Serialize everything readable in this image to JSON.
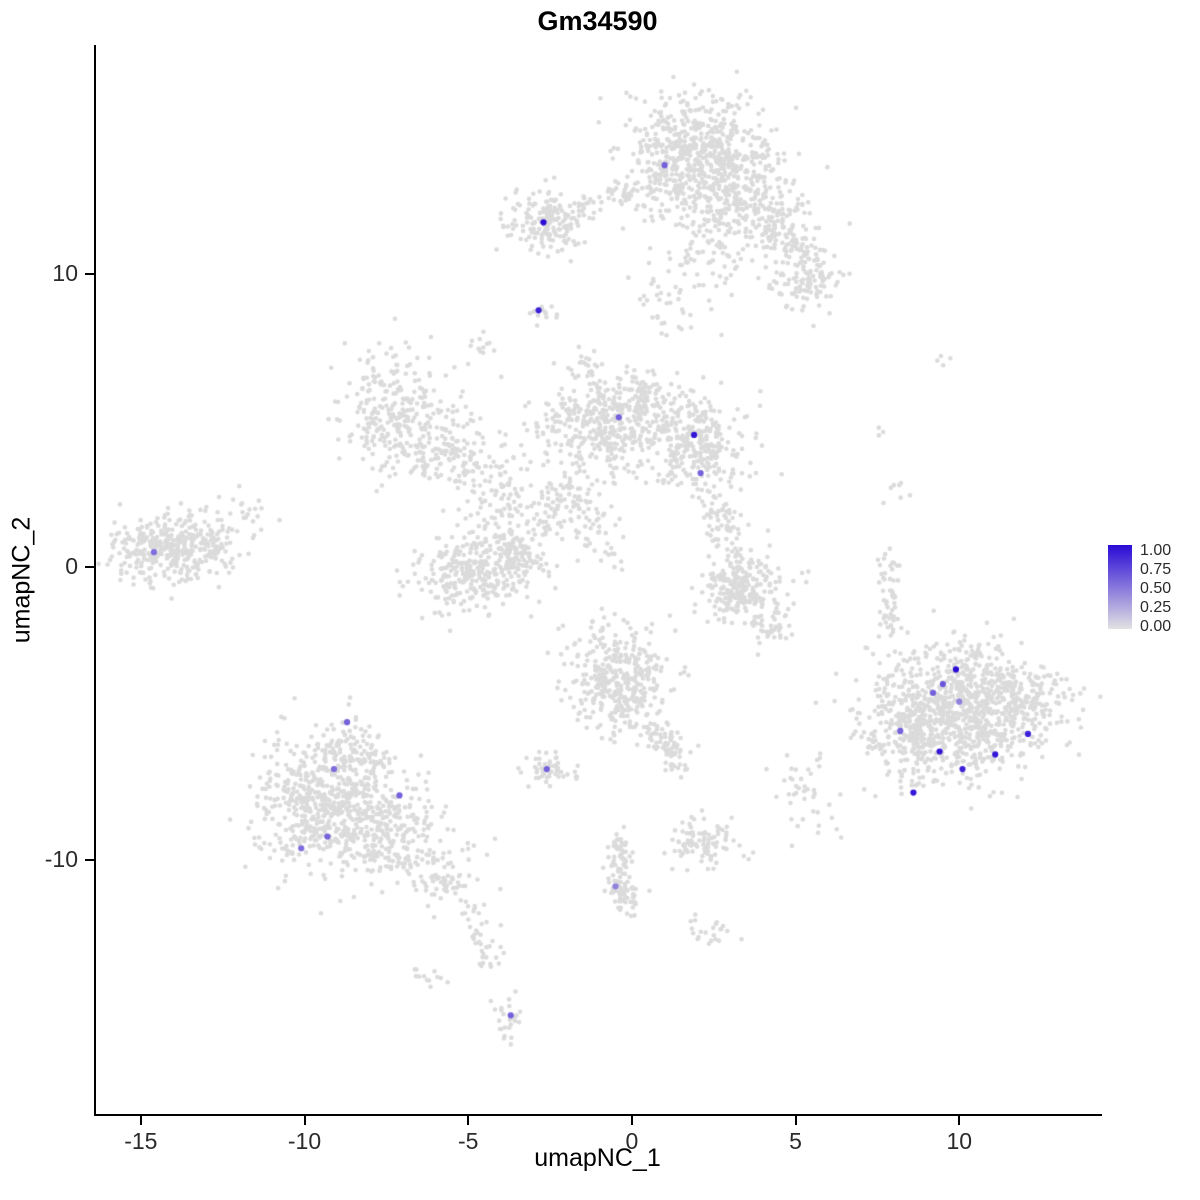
{
  "colors": {
    "background_points": "#DBDBDB",
    "axis": "#000000",
    "background": "#FFFFFF"
  },
  "chart_data": {
    "type": "scatter",
    "title": "Gm34590",
    "xlabel": "umapNC_1",
    "ylabel": "umapNC_2",
    "xlim": [
      -16.4,
      14.3
    ],
    "ylim": [
      -18.7,
      17.8
    ],
    "x_ticks": [
      -15,
      -10,
      -5,
      0,
      5,
      10
    ],
    "y_ticks": [
      10,
      0,
      -10
    ],
    "grid": false,
    "legend": {
      "position": "right",
      "labels": [
        "1.00",
        "0.75",
        "0.50",
        "0.25",
        "0.00"
      ],
      "color_high": "#2A0BD6",
      "color_low": "#E2E2E2"
    },
    "background_clusters": [
      {
        "shape": "blob",
        "cx": 1.9,
        "cy": 14.0,
        "sx": 1.15,
        "sy": 1.0,
        "n": 650
      },
      {
        "shape": "blob",
        "cx": 3.6,
        "cy": 12.4,
        "sx": 0.9,
        "sy": 0.8,
        "n": 180
      },
      {
        "shape": "strand",
        "x1": 4.2,
        "y1": 11.9,
        "x2": 5.6,
        "y2": 10.3,
        "w": 0.45,
        "n": 110
      },
      {
        "shape": "blob",
        "cx": 5.3,
        "cy": 9.7,
        "sx": 0.6,
        "sy": 0.5,
        "n": 90
      },
      {
        "shape": "blob",
        "cx": 2.2,
        "cy": 11.0,
        "sx": 1.0,
        "sy": 1.0,
        "n": 90
      },
      {
        "shape": "blob",
        "cx": 1.2,
        "cy": 8.9,
        "sx": 0.7,
        "sy": 0.6,
        "n": 35
      },
      {
        "shape": "blob",
        "cx": -2.6,
        "cy": 11.8,
        "sx": 0.6,
        "sy": 0.5,
        "n": 170
      },
      {
        "shape": "strand",
        "x1": -1.9,
        "y1": 12.1,
        "x2": 0.5,
        "y2": 12.8,
        "w": 0.25,
        "n": 45
      },
      {
        "shape": "blob",
        "cx": -2.8,
        "cy": 8.7,
        "sx": 0.18,
        "sy": 0.18,
        "n": 14
      },
      {
        "shape": "blob",
        "cx": -4.6,
        "cy": 7.5,
        "sx": 0.25,
        "sy": 0.2,
        "n": 12
      },
      {
        "shape": "blob",
        "cx": -7.2,
        "cy": 5.4,
        "sx": 0.85,
        "sy": 0.95,
        "n": 260
      },
      {
        "shape": "blob",
        "cx": -6.2,
        "cy": 3.9,
        "sx": 0.55,
        "sy": 0.5,
        "n": 70
      },
      {
        "shape": "strand",
        "x1": -5.6,
        "y1": 4.6,
        "x2": -4.2,
        "y2": 2.9,
        "w": 0.5,
        "n": 80
      },
      {
        "shape": "blob",
        "cx": -0.9,
        "cy": 4.9,
        "sx": 0.95,
        "sy": 0.8,
        "n": 380
      },
      {
        "shape": "blob",
        "cx": 1.9,
        "cy": 4.2,
        "sx": 0.85,
        "sy": 0.75,
        "n": 320
      },
      {
        "shape": "blob",
        "cx": 0.5,
        "cy": 5.7,
        "sx": 0.5,
        "sy": 0.4,
        "n": 70
      },
      {
        "shape": "blob",
        "cx": -3.9,
        "cy": 2.1,
        "sx": 1.0,
        "sy": 0.8,
        "n": 100
      },
      {
        "shape": "strand",
        "x1": -3.0,
        "y1": 1.4,
        "x2": -1.2,
        "y2": 3.0,
        "w": 0.55,
        "n": 90
      },
      {
        "shape": "blob",
        "cx": -4.9,
        "cy": -0.2,
        "sx": 0.9,
        "sy": 0.6,
        "n": 300
      },
      {
        "shape": "blob",
        "cx": -3.5,
        "cy": 0.4,
        "sx": 0.45,
        "sy": 0.5,
        "n": 80
      },
      {
        "shape": "strand",
        "x1": -1.6,
        "y1": 1.8,
        "x2": -0.6,
        "y2": 0.4,
        "w": 0.4,
        "n": 45
      },
      {
        "shape": "blob",
        "cx": -1.6,
        "cy": 6.9,
        "sx": 0.3,
        "sy": 0.35,
        "n": 18
      },
      {
        "shape": "strand",
        "x1": 2.3,
        "y1": 2.6,
        "x2": 3.1,
        "y2": 0.6,
        "w": 0.3,
        "n": 70
      },
      {
        "shape": "blob",
        "cx": 3.3,
        "cy": -0.6,
        "sx": 0.6,
        "sy": 0.55,
        "n": 240
      },
      {
        "shape": "strand",
        "x1": 3.7,
        "y1": -1.5,
        "x2": 4.5,
        "y2": -2.5,
        "w": 0.3,
        "n": 45
      },
      {
        "shape": "blob",
        "cx": -14.2,
        "cy": 0.6,
        "sx": 0.9,
        "sy": 0.55,
        "n": 320
      },
      {
        "shape": "blob",
        "cx": -12.8,
        "cy": 1.1,
        "sx": 0.7,
        "sy": 0.5,
        "n": 70
      },
      {
        "shape": "blob",
        "cx": -12.0,
        "cy": 1.8,
        "sx": 0.5,
        "sy": 0.5,
        "n": 14
      },
      {
        "shape": "blob",
        "cx": -0.3,
        "cy": -3.9,
        "sx": 0.8,
        "sy": 0.9,
        "n": 380
      },
      {
        "shape": "strand",
        "x1": 0.5,
        "y1": -5.1,
        "x2": 1.1,
        "y2": -6.2,
        "w": 0.3,
        "n": 45
      },
      {
        "shape": "blob",
        "cx": 1.2,
        "cy": -6.5,
        "sx": 0.3,
        "sy": 0.3,
        "n": 30
      },
      {
        "shape": "blob",
        "cx": -2.5,
        "cy": -6.9,
        "sx": 0.4,
        "sy": 0.28,
        "n": 55
      },
      {
        "shape": "strand",
        "x1": -0.4,
        "y1": -9.2,
        "x2": -0.3,
        "y2": -11.2,
        "w": 0.2,
        "n": 70
      },
      {
        "shape": "blob",
        "cx": -0.2,
        "cy": -11.2,
        "sx": 0.3,
        "sy": 0.4,
        "n": 45
      },
      {
        "shape": "blob",
        "cx": 2.1,
        "cy": -9.4,
        "sx": 0.55,
        "sy": 0.45,
        "n": 100
      },
      {
        "shape": "blob",
        "cx": 2.4,
        "cy": -12.4,
        "sx": 0.4,
        "sy": 0.3,
        "n": 22
      },
      {
        "shape": "blob",
        "cx": 5.2,
        "cy": -7.4,
        "sx": 0.5,
        "sy": 0.7,
        "n": 35
      },
      {
        "shape": "blob",
        "cx": -8.9,
        "cy": -8.4,
        "sx": 1.15,
        "sy": 1.0,
        "n": 600
      },
      {
        "shape": "blob",
        "cx": -8.7,
        "cy": -6.3,
        "sx": 0.75,
        "sy": 0.6,
        "n": 130
      },
      {
        "shape": "blob",
        "cx": -7.0,
        "cy": -9.6,
        "sx": 0.9,
        "sy": 0.7,
        "n": 130
      },
      {
        "shape": "strand",
        "x1": -6.1,
        "y1": -10.3,
        "x2": -4.8,
        "y2": -11.9,
        "w": 0.4,
        "n": 60
      },
      {
        "shape": "strand",
        "x1": -4.6,
        "y1": -12.1,
        "x2": -4.3,
        "y2": -13.6,
        "w": 0.25,
        "n": 28
      },
      {
        "shape": "blob",
        "cx": -3.8,
        "cy": -15.3,
        "sx": 0.25,
        "sy": 0.4,
        "n": 26
      },
      {
        "shape": "blob",
        "cx": -10.7,
        "cy": -7.2,
        "sx": 0.5,
        "sy": 0.8,
        "n": 45
      },
      {
        "shape": "blob",
        "cx": -6.3,
        "cy": -13.9,
        "sx": 0.3,
        "sy": 0.3,
        "n": 12
      },
      {
        "shape": "blob",
        "cx": 10.0,
        "cy": -4.9,
        "sx": 1.35,
        "sy": 1.1,
        "n": 950
      },
      {
        "shape": "blob",
        "cx": 8.5,
        "cy": -5.6,
        "sx": 0.6,
        "sy": 0.85,
        "n": 160
      },
      {
        "shape": "blob",
        "cx": 11.9,
        "cy": -4.3,
        "sx": 0.7,
        "sy": 0.6,
        "n": 110
      },
      {
        "shape": "strand",
        "x1": 7.8,
        "y1": -2.3,
        "x2": 7.9,
        "y2": 0.4,
        "w": 0.2,
        "n": 55
      },
      {
        "shape": "blob",
        "cx": 8.1,
        "cy": 2.6,
        "sx": 0.2,
        "sy": 0.3,
        "n": 7
      },
      {
        "shape": "blob",
        "cx": 7.6,
        "cy": 4.5,
        "sx": 0.15,
        "sy": 0.15,
        "n": 3
      },
      {
        "shape": "blob",
        "cx": 9.5,
        "cy": 7.0,
        "sx": 0.2,
        "sy": 0.15,
        "n": 4
      },
      {
        "shape": "blob",
        "cx": 5.3,
        "cy": -0.3,
        "sx": 0.15,
        "sy": 0.15,
        "n": 2
      },
      {
        "shape": "blob",
        "cx": 6.0,
        "cy": -9.0,
        "sx": 0.3,
        "sy": 0.3,
        "n": 5
      }
    ],
    "expressing_cells": [
      {
        "x": 1.0,
        "y": 13.7,
        "v": 0.6
      },
      {
        "x": -2.7,
        "y": 11.75,
        "v": 1.0
      },
      {
        "x": -2.85,
        "y": 8.75,
        "v": 0.9
      },
      {
        "x": -0.4,
        "y": 5.1,
        "v": 0.6
      },
      {
        "x": 1.9,
        "y": 4.5,
        "v": 0.95
      },
      {
        "x": 2.1,
        "y": 3.2,
        "v": 0.6
      },
      {
        "x": -14.6,
        "y": 0.5,
        "v": 0.55
      },
      {
        "x": -8.7,
        "y": -5.3,
        "v": 0.6
      },
      {
        "x": -9.1,
        "y": -6.9,
        "v": 0.55
      },
      {
        "x": -7.1,
        "y": -7.8,
        "v": 0.6
      },
      {
        "x": -9.3,
        "y": -9.2,
        "v": 0.6
      },
      {
        "x": -10.1,
        "y": -9.6,
        "v": 0.55
      },
      {
        "x": -2.6,
        "y": -6.9,
        "v": 0.6
      },
      {
        "x": -0.5,
        "y": -10.9,
        "v": 0.45
      },
      {
        "x": -3.7,
        "y": -15.3,
        "v": 0.6
      },
      {
        "x": 9.9,
        "y": -3.5,
        "v": 1.0
      },
      {
        "x": 9.5,
        "y": -4.0,
        "v": 0.65
      },
      {
        "x": 9.2,
        "y": -4.3,
        "v": 0.6
      },
      {
        "x": 10.0,
        "y": -4.6,
        "v": 0.45
      },
      {
        "x": 8.2,
        "y": -5.6,
        "v": 0.6
      },
      {
        "x": 9.4,
        "y": -6.3,
        "v": 0.95
      },
      {
        "x": 10.1,
        "y": -6.9,
        "v": 0.9
      },
      {
        "x": 11.1,
        "y": -6.4,
        "v": 0.95
      },
      {
        "x": 12.1,
        "y": -5.7,
        "v": 0.9
      },
      {
        "x": 8.6,
        "y": -7.7,
        "v": 0.95
      }
    ]
  }
}
